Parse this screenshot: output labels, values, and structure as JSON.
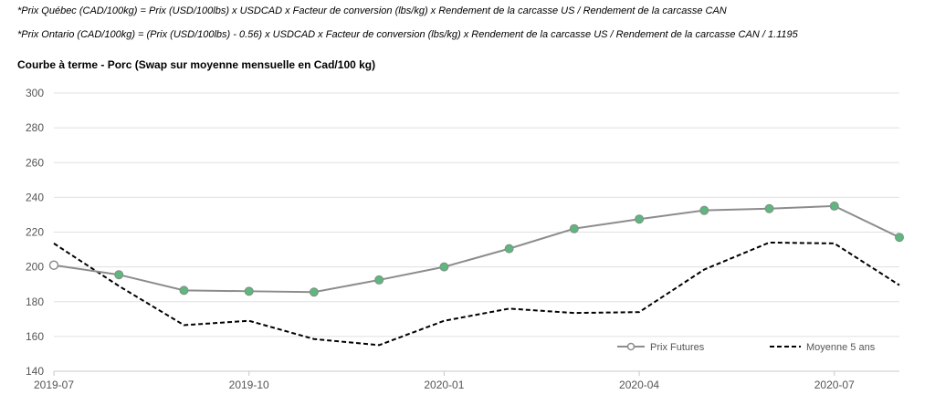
{
  "notes": [
    "*Prix Québec (CAD/100kg) = Prix (USD/100lbs) x USDCAD x Facteur de conversion (lbs/kg) x Rendement de la carcasse US / Rendement de la carcasse CAN",
    "*Prix Ontario (CAD/100kg) = (Prix (USD/100lbs) - 0.56) x USDCAD x Facteur de conversion (lbs/kg) x Rendement de la carcasse US / Rendement de la carcasse CAN / 1.1195"
  ],
  "chart_data": {
    "type": "line",
    "title": "Courbe à terme - Porc (Swap sur moyenne mensuelle en Cad/100 kg)",
    "xlabel": "",
    "ylabel": "",
    "ylim": [
      140,
      300
    ],
    "yticks": [
      140,
      160,
      180,
      200,
      220,
      240,
      260,
      280,
      300
    ],
    "x": [
      "2019-07",
      "2019-08",
      "2019-09",
      "2019-10",
      "2019-11",
      "2019-12",
      "2020-01",
      "2020-02",
      "2020-03",
      "2020-04",
      "2020-05",
      "2020-06",
      "2020-07",
      "2020-08"
    ],
    "xtick_labels": [
      "2019-07",
      "2019-10",
      "2020-01",
      "2020-04",
      "2020-07"
    ],
    "grid": true,
    "legend_position": "bottom-right",
    "series": [
      {
        "name": "Prix Futures",
        "style": "solid-with-markers",
        "color": "#8c8c8c",
        "marker_color": "#5fb67f",
        "values": [
          201,
          195.5,
          186.5,
          186,
          185.5,
          192.5,
          200,
          210.5,
          222,
          227.5,
          232.5,
          233.5,
          235,
          217
        ]
      },
      {
        "name": "Moyenne 5 ans",
        "style": "dashed",
        "color": "#000000",
        "values": [
          213.5,
          189,
          166.5,
          169,
          158.5,
          155,
          169,
          176,
          173.5,
          174,
          198.5,
          214,
          213.5,
          189.5
        ]
      }
    ]
  }
}
